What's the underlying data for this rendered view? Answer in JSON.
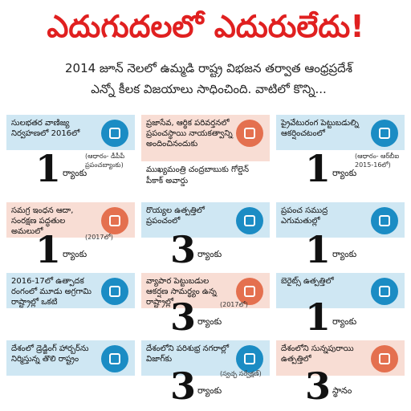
{
  "header": {
    "title": "ఎదుగుదలలో ఎదురులేదు!",
    "subtitle_lines": [
      "2014 జూన్ నెలలో ఉమ్మడి రాష్ట్ర విభజన తర్వాత ఆంధ్రప్రదేశ్",
      "ఎన్నో కీలక విజయాలు సాధించింది. వాటిలో కొన్ని..."
    ]
  },
  "cards": [
    {
      "theme": "blue",
      "text": "సులభతర వాణిజ్య నిర్వహణలో 2016లో",
      "rank": 1,
      "rank_label": "ర్యాంకు",
      "note": "(ఆధారం- డీపీపీ ప్రపంచబ్యాంకు)"
    },
    {
      "theme": "salmon",
      "text": "ప్రజాసేవ, ఆర్థిక పరివర్తనలో ప్రపంచస్థాయి నాయకత్వాన్ని అందించినందుకు",
      "subtext": "ముఖ్యమంత్రి చంద్రబాబుకు గోల్డెన్ పీకాక్ అవార్డు"
    },
    {
      "theme": "blue",
      "text": "ప్రైవేటురంగ పెట్టుబడుల్ని ఆకర్షించటంలో",
      "rank": 1,
      "rank_label": "ర్యాంకు",
      "note": "(ఆధారం- ఆర్‌బీఐ 2015-16లో)"
    },
    {
      "theme": "salmon",
      "text": "సమగ్ర ఇంధన ఆదా, సంరక్షణ పద్ధతుల అమలులో",
      "rank": 1,
      "rank_label": "ర్యాంకు",
      "note": "(2017లో)"
    },
    {
      "theme": "blue",
      "text": "రొయ్యల ఉత్పత్తిలో ప్రపంచంలో",
      "rank": 3,
      "rank_label": "ర్యాంకు"
    },
    {
      "theme": "blue",
      "text": "ప్రపంచ సముద్ర ఎగుమతుల్లో",
      "rank": 1,
      "rank_label": "ర్యాంకు"
    },
    {
      "theme": "blue",
      "text": "2016-17లో ఉత్పాదక రంగంలో మూడు అగ్రగామి రాష్ట్రాల్లో ఒకటి"
    },
    {
      "theme": "salmon",
      "text": "వ్యాపార పెట్టుబడుల ఆకర్షణ సామర్థ్యం ఉన్న రాష్ట్రాల్లో",
      "rank": 3,
      "rank_label": "ర్యాంకు",
      "note": "(2017లో)"
    },
    {
      "theme": "blue",
      "text": "బెరైట్స్ ఉత్పత్తిలో",
      "rank": 1,
      "rank_label": "ర్యాంకు"
    },
    {
      "theme": "blue",
      "text": "దేశంలో డ్రెడ్జింగ్ హార్బర్‌ను నిర్మిస్తున్న తొలి రాష్ట్రం"
    },
    {
      "theme": "blue",
      "text": "దేశంలోని పరిశుభ్ర నగరాల్లో విజాగ్‌కు",
      "rank": 3,
      "rank_label": "ర్యాంకు",
      "note": "(స్వచ్ఛ సర్వేక్షణ్)"
    },
    {
      "theme": "salmon",
      "text": "దేశంలోని సున్నపురాయి ఉత్పత్తిలో",
      "rank": 3,
      "rank_label": "స్థానం"
    }
  ]
}
